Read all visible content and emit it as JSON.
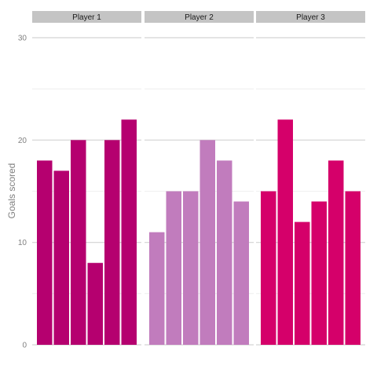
{
  "chart_data": {
    "type": "bar",
    "facet": "player",
    "ylabel": "Goals scored",
    "xlabel": "",
    "ylim": [
      0,
      30
    ],
    "yticks": [
      0,
      10,
      20,
      30
    ],
    "grid": true,
    "legend": "none",
    "panels": [
      {
        "name": "Player 1",
        "color": "#b5006f",
        "values": [
          18,
          17,
          20,
          8,
          20,
          22
        ]
      },
      {
        "name": "Player 2",
        "color": "#c17cbd",
        "values": [
          11,
          15,
          15,
          20,
          18,
          14
        ]
      },
      {
        "name": "Player 3",
        "color": "#d5006a",
        "values": [
          15,
          22,
          12,
          14,
          18,
          15
        ]
      }
    ]
  },
  "colors": {
    "strip_background": "#c4c4c4",
    "gridline_major": "#d3d3d3",
    "gridline_minor": "#ebebeb"
  }
}
